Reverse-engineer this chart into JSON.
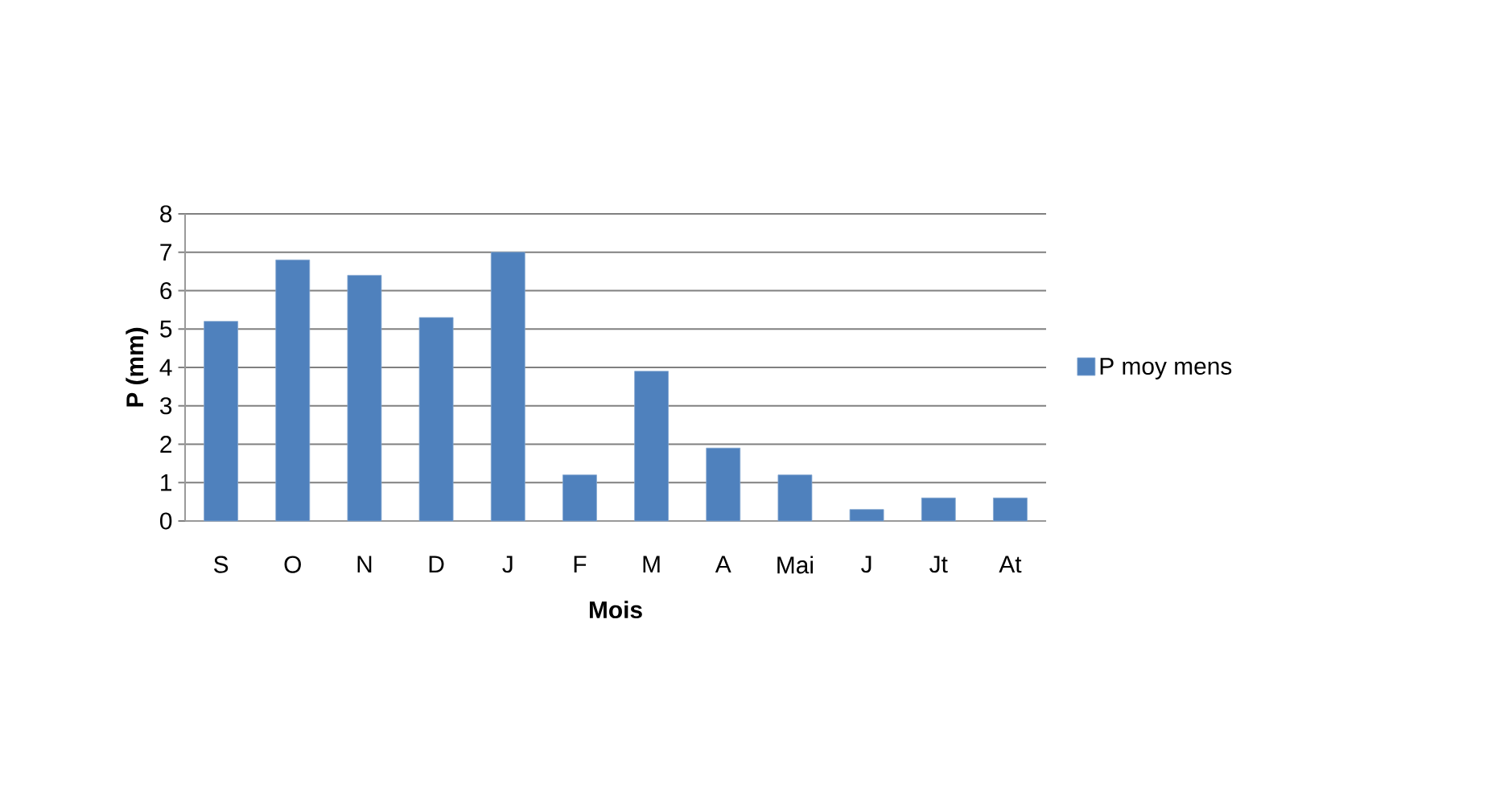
{
  "chart_data": {
    "type": "bar",
    "xlabel": "Mois",
    "ylabel": "P (mm)",
    "categories": [
      "S",
      "O",
      "N",
      "D",
      "J",
      "F",
      "M",
      "A",
      "Mai",
      "J",
      "Jt",
      "At"
    ],
    "series": [
      {
        "name": "P moy mens",
        "color": "#4f81bd",
        "values": [
          5.2,
          6.8,
          6.4,
          5.3,
          7.0,
          1.2,
          3.9,
          1.9,
          1.2,
          0.3,
          0.6,
          0.6
        ]
      }
    ],
    "ylim": [
      0,
      8
    ],
    "yticks": [
      0,
      1,
      2,
      3,
      4,
      5,
      6,
      7,
      8
    ],
    "grid": "y",
    "legend": "right"
  }
}
